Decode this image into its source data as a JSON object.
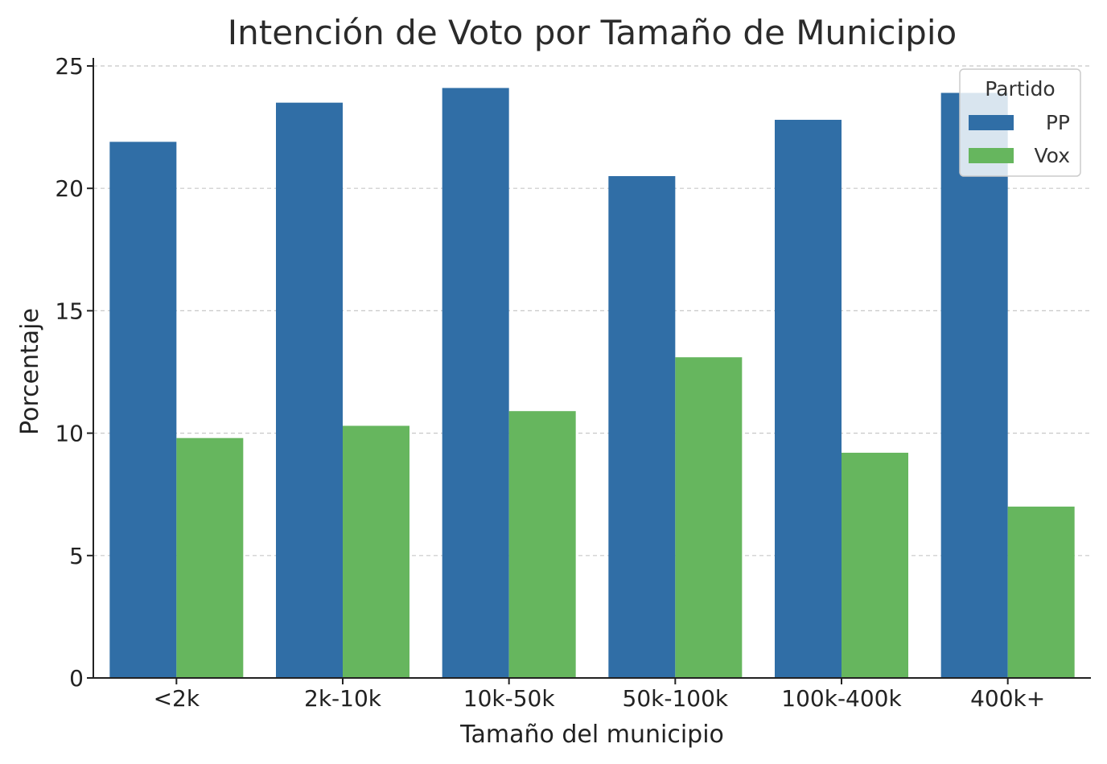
{
  "chart_data": {
    "type": "bar",
    "title": "Intención de Voto por Tamaño de Municipio",
    "xlabel": "Tamaño del municipio",
    "ylabel": "Porcentaje",
    "categories": [
      "<2k",
      "2k-10k",
      "10k-50k",
      "50k-100k",
      "100k-400k",
      "400k+"
    ],
    "series": [
      {
        "name": "PP",
        "color": "#306EA6",
        "values": [
          21.9,
          23.5,
          24.1,
          20.5,
          22.8,
          23.9
        ]
      },
      {
        "name": "Vox",
        "color": "#66B65E",
        "values": [
          9.8,
          10.3,
          10.9,
          13.1,
          9.2,
          7.0
        ]
      }
    ],
    "ylim": [
      0,
      25
    ],
    "yticks": [
      0,
      5,
      10,
      15,
      20,
      25
    ],
    "grid": true,
    "legend": {
      "title": "Partido",
      "placement": "top-right"
    }
  }
}
